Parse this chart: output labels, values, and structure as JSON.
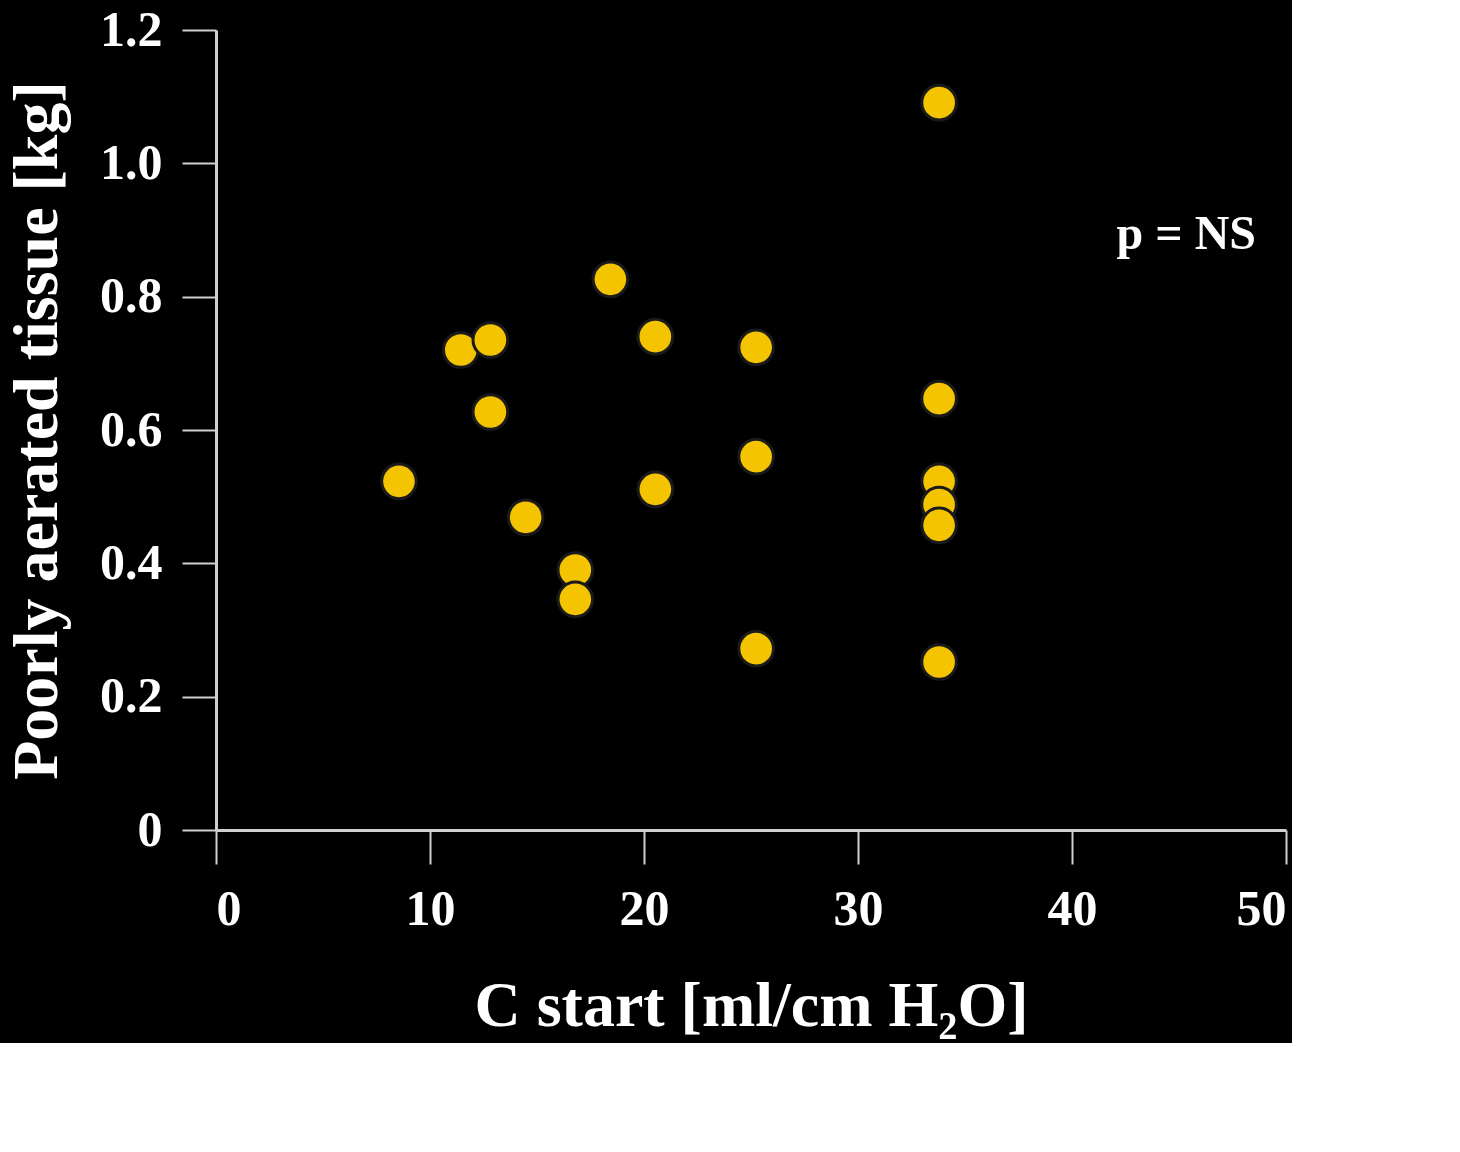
{
  "chart_data": {
    "type": "scatter",
    "xlabel": "C start [ml/cm H₂O]",
    "ylabel": "Poorly aerated tissue [kg]",
    "x": [
      8.55,
      11.44,
      12.82,
      12.82,
      14.47,
      16.79,
      16.79,
      18.43,
      20.53,
      20.53,
      25.24,
      25.24,
      25.24,
      33.79,
      33.79,
      33.79,
      33.79,
      33.79,
      33.79
    ],
    "series": [
      {
        "color": "#f5c400",
        "values": [
          0.523,
          0.72,
          0.735,
          0.627,
          0.469,
          0.39,
          0.346,
          0.826,
          0.74,
          0.511,
          0.724,
          0.56,
          0.272,
          1.091,
          0.647,
          0.523,
          0.488,
          0.457,
          0.252
        ]
      }
    ],
    "xlim": [
      0,
      50
    ],
    "xticks": [
      0,
      10,
      20,
      30,
      40,
      50
    ],
    "ylim": [
      0,
      1.2
    ],
    "yticks": [
      {
        "value": 0,
        "label": "0"
      },
      {
        "value": 0.2,
        "label": "0.2"
      },
      {
        "value": 0.4,
        "label": "0.4"
      },
      {
        "value": 0.6,
        "label": "0.6"
      },
      {
        "value": 0.8,
        "label": "0.8"
      },
      {
        "value": 1.0,
        "label": "1.0"
      },
      {
        "value": 1.2,
        "label": "1.2"
      }
    ],
    "annotations": [
      "p = NS"
    ],
    "marker": "circle",
    "grid": false,
    "legend": false
  }
}
